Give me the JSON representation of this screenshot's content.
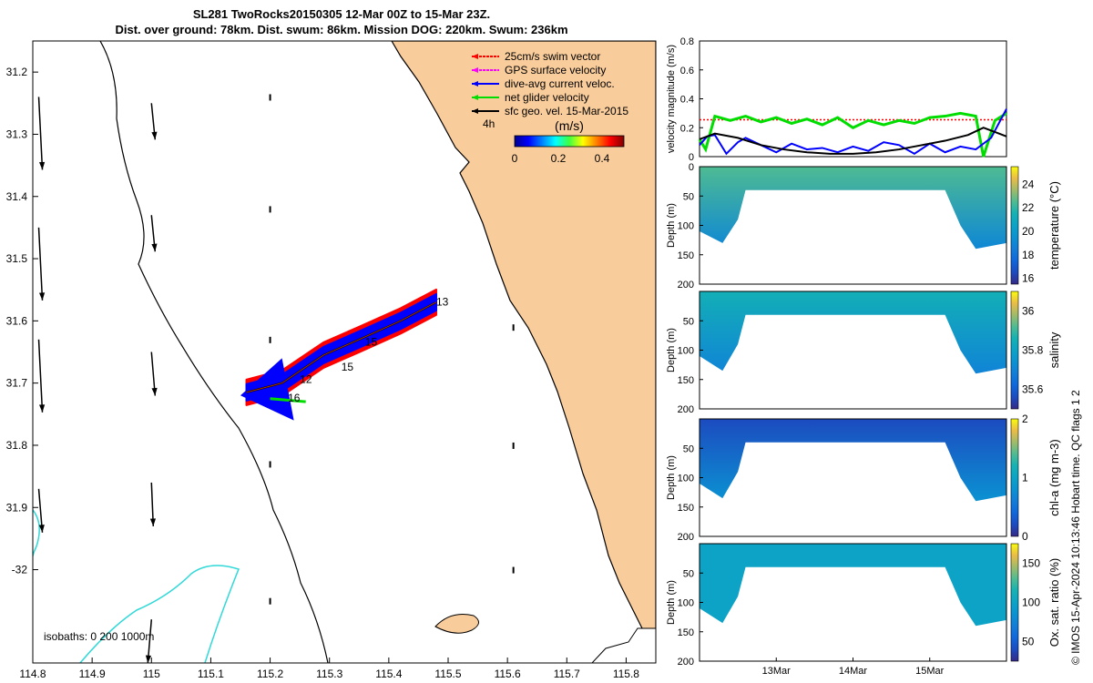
{
  "title": {
    "line1": "SL281 TwoRocks20150305 12-Mar 00Z to 15-Mar 23Z.",
    "line2": "Dist. over ground: 78km. Dist. swum: 86km. Mission DOG: 220km. Swum: 236km"
  },
  "colors": {
    "land": "#f9cc9c",
    "coast": "#000000",
    "isobath_shallow": "#000000",
    "isobath_deep": "#30d8d8",
    "swim_vector": "#ff0000",
    "gps_velocity": "#ff00ff",
    "dive_avg": "#0000ff",
    "net_glider": "#00dd00",
    "sfc_geo": "#000000"
  },
  "chart_data": [
    {
      "type": "map",
      "name": "track-map",
      "xlim": [
        114.8,
        115.85
      ],
      "ylim": [
        -32.15,
        -31.15
      ],
      "x_ticks": [
        114.8,
        114.9,
        115,
        115.1,
        115.2,
        115.3,
        115.4,
        115.5,
        115.6,
        115.7,
        115.8
      ],
      "x_tick_labels": [
        "114.8",
        "114.9",
        "115",
        "115.1",
        "115.2",
        "115.3",
        "115.4",
        "115.5",
        "115.6",
        "115.7",
        "115.8"
      ],
      "y_ticks": [
        -31.2,
        -31.3,
        -31.4,
        -31.5,
        -31.6,
        -31.7,
        -31.8,
        -31.9,
        -32
      ],
      "y_tick_labels": [
        "31.2",
        "31.3",
        "31.4",
        "31.5",
        "31.6",
        "31.7",
        "31.8",
        "31.9",
        "-32"
      ],
      "legend": [
        {
          "label": "25cm/s swim vector",
          "color_key": "swim_vector"
        },
        {
          "label": "GPS surface velocity",
          "color_key": "gps_velocity"
        },
        {
          "label": "dive-avg current veloc.",
          "color_key": "dive_avg"
        },
        {
          "label": "net glider velocity",
          "color_key": "net_glider"
        },
        {
          "label": "sfc geo. vel. 15-Mar-2015",
          "color_key": "sfc_geo"
        }
      ],
      "legend_time_label": "4h",
      "colorbar": {
        "label": "(m/s)",
        "range": [
          0,
          0.5
        ],
        "ticks": [
          0,
          0.2,
          0.4
        ],
        "tick_labels": [
          "0",
          "0.2",
          "0.4"
        ],
        "colormap": "jet"
      },
      "isobaths_label": "isobaths: 0   200  1000m",
      "track": [
        [
          115.16,
          -31.715
        ],
        [
          115.22,
          -31.7
        ],
        [
          115.29,
          -31.655
        ],
        [
          115.35,
          -31.63
        ],
        [
          115.42,
          -31.6
        ],
        [
          115.48,
          -31.57
        ]
      ],
      "track_day_labels": [
        {
          "text": "13",
          "lon": 115.48,
          "lat": -31.575
        },
        {
          "text": "15",
          "lon": 115.36,
          "lat": -31.64
        },
        {
          "text": "15",
          "lon": 115.32,
          "lat": -31.68
        },
        {
          "text": "12",
          "lon": 115.25,
          "lat": -31.7
        },
        {
          "text": "16",
          "lon": 115.23,
          "lat": -31.73
        }
      ],
      "net_velocity": {
        "from": [
          115.2,
          -31.725
        ],
        "to": [
          115.26,
          -31.73
        ]
      },
      "surface_vectors": [
        {
          "lon": 114.81,
          "lat": -31.24,
          "u": 0.01,
          "v": -0.2
        },
        {
          "lon": 114.81,
          "lat": -31.45,
          "u": 0.01,
          "v": -0.2
        },
        {
          "lon": 114.81,
          "lat": -31.63,
          "u": 0.01,
          "v": -0.2
        },
        {
          "lon": 114.81,
          "lat": -31.87,
          "u": 0.01,
          "v": -0.12
        },
        {
          "lon": 115.0,
          "lat": -31.25,
          "u": 0.01,
          "v": -0.1
        },
        {
          "lon": 115.0,
          "lat": -31.43,
          "u": 0.01,
          "v": -0.1
        },
        {
          "lon": 115.0,
          "lat": -31.65,
          "u": 0.01,
          "v": -0.12
        },
        {
          "lon": 115.0,
          "lat": -31.86,
          "u": 0.005,
          "v": -0.12
        },
        {
          "lon": 115.0,
          "lat": -32.08,
          "u": -0.01,
          "v": -0.12
        }
      ],
      "small_vectors": [
        {
          "lon": 115.2,
          "lat": -31.24
        },
        {
          "lon": 115.2,
          "lat": -31.42
        },
        {
          "lon": 115.2,
          "lat": -31.63
        },
        {
          "lon": 115.2,
          "lat": -31.83
        },
        {
          "lon": 115.2,
          "lat": -32.05
        },
        {
          "lon": 115.61,
          "lat": -31.61
        },
        {
          "lon": 115.61,
          "lat": -31.8
        },
        {
          "lon": 115.61,
          "lat": -32.0
        }
      ]
    },
    {
      "type": "line",
      "name": "velocity-timeseries",
      "ylabel": "velocity magnitude (m/s)",
      "ylim": [
        0,
        0.8
      ],
      "y_ticks": [
        0,
        0.2,
        0.4,
        0.6,
        0.8
      ],
      "y_tick_labels": [
        "0",
        "0.2",
        "0.4",
        "0.6",
        "0.8"
      ],
      "xlim": [
        12.0,
        16.0
      ],
      "series": [
        {
          "name": "swim vector",
          "color_key": "swim_vector",
          "x": [
            12.0,
            16.0
          ],
          "values": [
            0.255,
            0.255
          ]
        },
        {
          "name": "net glider velocity",
          "color_key": "net_glider",
          "x": [
            12.0,
            12.08,
            12.2,
            12.4,
            12.6,
            12.8,
            13.0,
            13.2,
            13.4,
            13.6,
            13.8,
            14.0,
            14.2,
            14.4,
            14.6,
            14.8,
            15.0,
            15.2,
            15.4,
            15.6,
            15.7,
            15.85,
            16.0
          ],
          "values": [
            0.12,
            0.05,
            0.28,
            0.25,
            0.28,
            0.24,
            0.27,
            0.23,
            0.26,
            0.22,
            0.27,
            0.2,
            0.25,
            0.22,
            0.25,
            0.23,
            0.27,
            0.28,
            0.3,
            0.28,
            0.0,
            0.25,
            0.3
          ]
        },
        {
          "name": "dive-avg current",
          "color_key": "dive_avg",
          "x": [
            12.0,
            12.1,
            12.2,
            12.35,
            12.5,
            12.6,
            12.8,
            13.0,
            13.2,
            13.4,
            13.6,
            13.8,
            14.0,
            14.2,
            14.4,
            14.6,
            14.8,
            15.0,
            15.2,
            15.4,
            15.6,
            15.8,
            16.0
          ],
          "values": [
            0.08,
            0.14,
            0.15,
            0.02,
            0.1,
            0.13,
            0.08,
            0.03,
            0.09,
            0.05,
            0.06,
            0.03,
            0.07,
            0.04,
            0.1,
            0.08,
            0.02,
            0.09,
            0.03,
            0.07,
            0.05,
            0.13,
            0.33
          ]
        },
        {
          "name": "sfc geo velocity",
          "color_key": "sfc_geo",
          "x": [
            12.0,
            12.2,
            12.5,
            12.8,
            13.1,
            13.4,
            13.7,
            14.0,
            14.3,
            14.6,
            14.9,
            15.2,
            15.5,
            15.7,
            15.9,
            16.0
          ],
          "values": [
            0.12,
            0.16,
            0.13,
            0.08,
            0.05,
            0.03,
            0.02,
            0.02,
            0.03,
            0.05,
            0.08,
            0.11,
            0.15,
            0.2,
            0.16,
            0.14
          ]
        }
      ]
    },
    {
      "type": "heatmap",
      "name": "temperature-section",
      "ylabel": "Depth (m)",
      "ylim": [
        200,
        0
      ],
      "y_ticks": [
        0,
        50,
        100,
        150,
        200
      ],
      "y_tick_labels": [
        "0",
        "50",
        "100",
        "150",
        "200"
      ],
      "colorbar_label": "temperature (°C)",
      "colorbar_range": [
        15.5,
        25.5
      ],
      "colorbar_ticks": [
        16,
        18,
        20,
        22,
        24
      ],
      "colorbar_tick_labels": [
        "16",
        "18",
        "20",
        "22",
        "24"
      ],
      "colormap": "parula",
      "surface_value": 22.5,
      "deep_value": 19,
      "profile_x": [
        12.0,
        12.3,
        12.5,
        12.6,
        15.2,
        15.4,
        15.6,
        16.0
      ],
      "profile_max_depth": [
        110,
        130,
        90,
        40,
        40,
        100,
        140,
        130
      ]
    },
    {
      "type": "heatmap",
      "name": "salinity-section",
      "ylabel": "Depth (m)",
      "ylim": [
        200,
        0
      ],
      "y_ticks": [
        50,
        100,
        150,
        200
      ],
      "y_tick_labels": [
        "50",
        "100",
        "150",
        "200"
      ],
      "colorbar_label": "salinity",
      "colorbar_range": [
        35.5,
        36.1
      ],
      "colorbar_ticks": [
        35.6,
        35.8,
        36
      ],
      "colorbar_tick_labels": [
        "35.6",
        "35.8",
        "36"
      ],
      "colormap": "parula",
      "surface_value": 35.85,
      "deep_value": 35.7,
      "profile_x": [
        12.0,
        12.3,
        12.5,
        12.6,
        15.2,
        15.4,
        15.6,
        16.0
      ],
      "profile_max_depth": [
        110,
        135,
        90,
        40,
        40,
        100,
        140,
        130
      ]
    },
    {
      "type": "heatmap",
      "name": "chla-section",
      "ylabel": "Depth (m)",
      "ylim": [
        200,
        0
      ],
      "y_ticks": [
        50,
        100,
        150,
        200
      ],
      "y_tick_labels": [
        "50",
        "100",
        "150",
        "200"
      ],
      "colorbar_label": "chl-a (mg m-3)",
      "colorbar_range": [
        0,
        2
      ],
      "colorbar_ticks": [
        0,
        1,
        2
      ],
      "colorbar_tick_labels": [
        "0",
        "1",
        "2"
      ],
      "colormap": "parula",
      "surface_value": 0.2,
      "deep_value": 0.8,
      "profile_x": [
        12.0,
        12.3,
        12.5,
        12.6,
        15.2,
        15.4,
        15.6,
        16.0
      ],
      "profile_max_depth": [
        110,
        135,
        90,
        40,
        40,
        100,
        140,
        130
      ]
    },
    {
      "type": "heatmap",
      "name": "oxygen-section",
      "ylabel": "Depth (m)",
      "ylim": [
        200,
        0
      ],
      "y_ticks": [
        50,
        100,
        150,
        200
      ],
      "y_tick_labels": [
        "50",
        "100",
        "150",
        "200"
      ],
      "colorbar_label": "Ox. sat. ratio (%)",
      "colorbar_range": [
        25,
        175
      ],
      "colorbar_ticks": [
        50,
        100,
        150
      ],
      "colorbar_tick_labels": [
        "50",
        "100",
        "150"
      ],
      "colormap": "parula",
      "surface_value": 100,
      "deep_value": 100,
      "profile_x": [
        12.0,
        12.3,
        12.5,
        12.6,
        15.2,
        15.4,
        15.6,
        16.0
      ],
      "profile_max_depth": [
        110,
        135,
        90,
        40,
        40,
        100,
        140,
        130
      ],
      "x_ticks": [
        13,
        14,
        15
      ],
      "x_tick_labels": [
        "13Mar",
        "14Mar",
        "15Mar"
      ]
    }
  ],
  "footer_text": "© IMOS 15-Apr-2024 10:13:46 Hobart time. QC flags 1  2"
}
